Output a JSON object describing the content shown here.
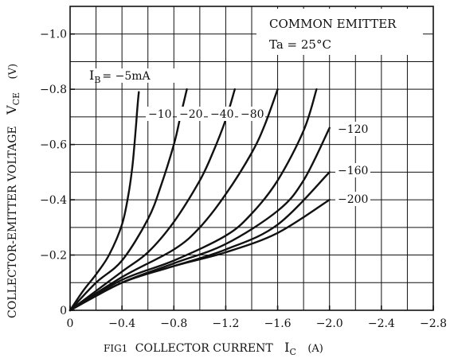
{
  "chart_data": {
    "type": "line",
    "figure_label": "FIG1",
    "xlabel": "COLLECTOR CURRENT",
    "xsymbol": "I",
    "xsub": "C",
    "xunit": "(A)",
    "ylabel": "COLLECTOR-EMITTER VOLTAGE",
    "ysymbol": "V",
    "ysub": "CE",
    "yunit": "(V)",
    "xlim": [
      0,
      -2.8
    ],
    "ylim": [
      0,
      -1.1
    ],
    "xticks": [
      0,
      -0.4,
      -0.8,
      -1.2,
      -1.6,
      -2.0,
      -2.4,
      -2.8
    ],
    "xtick_labels": [
      "0",
      "−0.4",
      "−0.8",
      "−1.2",
      "−1.6",
      "−2.0",
      "−2.4",
      "−2.8"
    ],
    "yticks": [
      0,
      -0.2,
      -0.4,
      -0.6,
      -0.8,
      -1.0
    ],
    "ytick_labels": [
      "0",
      "−0.2",
      "−0.4",
      "−0.6",
      "−0.8",
      "−1.0"
    ],
    "grid": true,
    "legend_title": "COMMON EMITTER",
    "condition": "Ta = 25°C",
    "series": [
      {
        "name": "IB = −5mA",
        "label_prefix": "I",
        "label_sub": "B",
        "label_text": "= −5mA",
        "x": [
          0,
          -0.1,
          -0.2,
          -0.3,
          -0.4,
          -0.45,
          -0.48,
          -0.5,
          -0.51,
          -0.52,
          -0.53
        ],
        "y": [
          0,
          -0.07,
          -0.13,
          -0.2,
          -0.31,
          -0.42,
          -0.52,
          -0.62,
          -0.68,
          -0.74,
          -0.79
        ]
      },
      {
        "name": "−10",
        "label_text": "−10",
        "x": [
          0,
          -0.2,
          -0.4,
          -0.6,
          -0.7,
          -0.8,
          -0.85,
          -0.9
        ],
        "y": [
          0,
          -0.1,
          -0.18,
          -0.33,
          -0.45,
          -0.6,
          -0.7,
          -0.8
        ]
      },
      {
        "name": "−20",
        "label_text": "−20",
        "x": [
          0,
          -0.4,
          -0.6,
          -0.8,
          -1.0,
          -1.1,
          -1.2,
          -1.27
        ],
        "y": [
          0,
          -0.14,
          -0.21,
          -0.32,
          -0.47,
          -0.57,
          -0.69,
          -0.8
        ]
      },
      {
        "name": "−40",
        "label_text": "−40",
        "x": [
          0,
          -0.4,
          -0.8,
          -1.0,
          -1.2,
          -1.4,
          -1.5,
          -1.6
        ],
        "y": [
          0,
          -0.12,
          -0.22,
          -0.3,
          -0.42,
          -0.57,
          -0.67,
          -0.8
        ]
      },
      {
        "name": "−80",
        "label_text": "−80",
        "x": [
          0,
          -0.4,
          -0.8,
          -1.2,
          -1.4,
          -1.6,
          -1.8,
          -1.9
        ],
        "y": [
          0,
          -0.11,
          -0.18,
          -0.27,
          -0.35,
          -0.47,
          -0.65,
          -0.8
        ]
      },
      {
        "name": "−120",
        "label_text": "−120",
        "x": [
          0,
          -0.4,
          -0.8,
          -1.2,
          -1.6,
          -1.8,
          -2.0
        ],
        "y": [
          0,
          -0.1,
          -0.17,
          -0.24,
          -0.36,
          -0.47,
          -0.66
        ]
      },
      {
        "name": "−160",
        "label_text": "−160",
        "x": [
          0,
          -0.4,
          -0.8,
          -1.2,
          -1.6,
          -2.0
        ],
        "y": [
          0,
          -0.1,
          -0.16,
          -0.22,
          -0.31,
          -0.5
        ]
      },
      {
        "name": "−200",
        "label_text": "−200",
        "x": [
          0,
          -0.4,
          -0.8,
          -1.2,
          -1.6,
          -2.0
        ],
        "y": [
          0,
          -0.1,
          -0.16,
          -0.21,
          -0.28,
          -0.4
        ]
      }
    ]
  }
}
